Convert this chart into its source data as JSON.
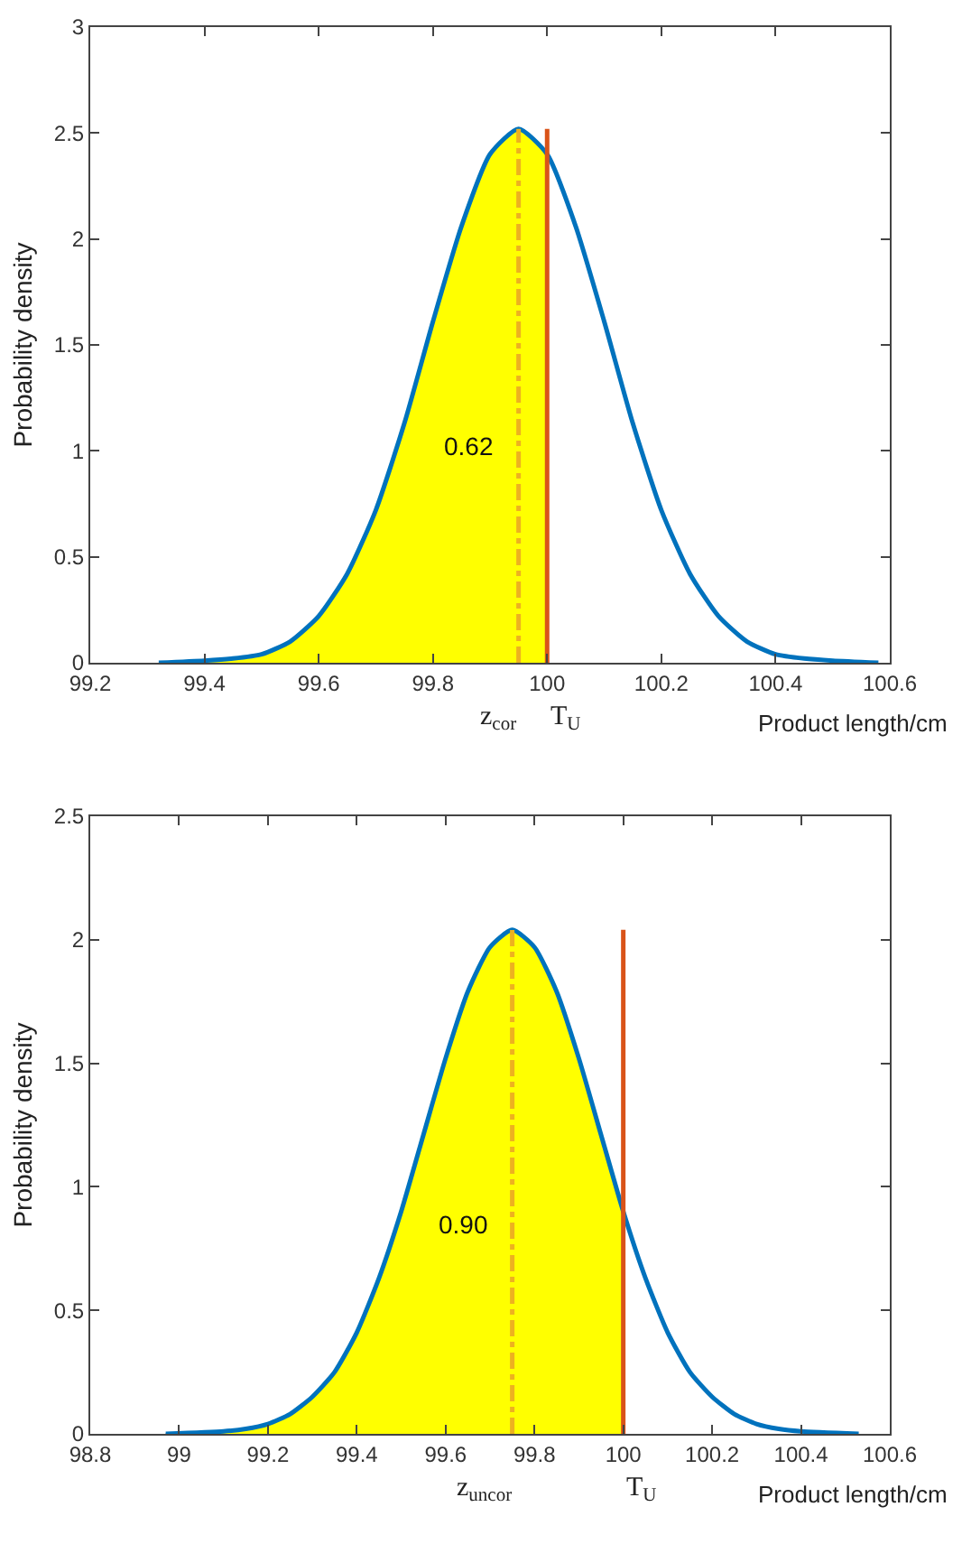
{
  "chart_data": [
    {
      "type": "line",
      "ylabel": "Probability density",
      "xlabel": "Product length/cm",
      "xlim": [
        99.2,
        100.6
      ],
      "xticks": [
        99.2,
        99.4,
        99.6,
        99.8,
        100,
        100.2,
        100.4,
        100.6
      ],
      "ylim": [
        0,
        3
      ],
      "yticks": [
        0,
        0.5,
        1,
        1.5,
        2,
        2.5,
        3
      ],
      "series": [
        {
          "type": "area",
          "color": "#ffff00",
          "x": [
            99.32,
            99.4,
            99.45,
            99.5,
            99.55,
            99.6,
            99.65,
            99.7,
            99.75,
            99.8,
            99.85,
            99.9,
            99.95,
            100
          ],
          "values": [
            0,
            0.01,
            0.02,
            0.04,
            0.1,
            0.22,
            0.42,
            0.72,
            1.13,
            1.61,
            2.06,
            2.4,
            2.52,
            2.4
          ]
        },
        {
          "color": "#0072bd",
          "line_style": "solid",
          "x": [
            99.32,
            99.4,
            99.45,
            99.5,
            99.55,
            99.6,
            99.65,
            99.7,
            99.75,
            99.8,
            99.85,
            99.9,
            99.95,
            100,
            100.05,
            100.1,
            100.15,
            100.2,
            100.25,
            100.3,
            100.35,
            100.4,
            100.45,
            100.5,
            100.58
          ],
          "values": [
            0,
            0.01,
            0.02,
            0.04,
            0.1,
            0.22,
            0.42,
            0.72,
            1.13,
            1.61,
            2.06,
            2.4,
            2.52,
            2.4,
            2.06,
            1.61,
            1.13,
            0.72,
            0.42,
            0.22,
            0.1,
            0.04,
            0.02,
            0.01,
            0
          ]
        },
        {
          "color": "#edb120",
          "line_style": "dashed",
          "x": [
            99.95,
            99.95
          ],
          "values": [
            0,
            2.52
          ]
        },
        {
          "color": "#d95319",
          "line_style": "solid",
          "x": [
            100,
            100
          ],
          "values": [
            0,
            2.52
          ]
        }
      ],
      "annotations": [
        "0.62",
        "z$_{cor}$",
        "T$_{U}$"
      ]
    },
    {
      "type": "line",
      "ylabel": "Probability density",
      "xlabel": "Product length/cm",
      "xlim": [
        98.8,
        100.6
      ],
      "xticks": [
        98.8,
        99,
        99.2,
        99.4,
        99.6,
        99.8,
        100,
        100.2,
        100.4,
        100.6
      ],
      "ylim": [
        0,
        2.5
      ],
      "yticks": [
        0,
        0.5,
        1,
        1.5,
        2,
        2.5
      ],
      "series": [
        {
          "type": "area",
          "color": "#ffff00",
          "x": [
            98.97,
            99.1,
            99.15,
            99.2,
            99.25,
            99.3,
            99.35,
            99.4,
            99.45,
            99.5,
            99.55,
            99.6,
            99.65,
            99.7,
            99.75,
            99.8,
            99.85,
            99.9,
            99.95,
            100
          ],
          "values": [
            0,
            0.01,
            0.02,
            0.04,
            0.08,
            0.15,
            0.25,
            0.41,
            0.63,
            0.9,
            1.21,
            1.52,
            1.79,
            1.97,
            2.04,
            1.97,
            1.79,
            1.52,
            1.21,
            0.9
          ]
        },
        {
          "color": "#0072bd",
          "line_style": "solid",
          "x": [
            98.97,
            99.1,
            99.15,
            99.2,
            99.25,
            99.3,
            99.35,
            99.4,
            99.45,
            99.5,
            99.55,
            99.6,
            99.65,
            99.7,
            99.75,
            99.8,
            99.85,
            99.9,
            99.95,
            100,
            100.05,
            100.1,
            100.15,
            100.2,
            100.25,
            100.3,
            100.35,
            100.4,
            100.53
          ],
          "values": [
            0,
            0.01,
            0.02,
            0.04,
            0.08,
            0.15,
            0.25,
            0.41,
            0.63,
            0.9,
            1.21,
            1.52,
            1.79,
            1.97,
            2.04,
            1.97,
            1.79,
            1.52,
            1.21,
            0.9,
            0.63,
            0.41,
            0.25,
            0.15,
            0.08,
            0.04,
            0.02,
            0.01,
            0
          ]
        },
        {
          "color": "#edb120",
          "line_style": "dashed",
          "x": [
            99.75,
            99.75
          ],
          "values": [
            0,
            2.04
          ]
        },
        {
          "color": "#d95319",
          "line_style": "solid",
          "x": [
            100,
            100
          ],
          "values": [
            0,
            2.04
          ]
        }
      ],
      "annotations": [
        "0.90",
        "z$_{uncor}$",
        "T$_{U}$"
      ]
    }
  ]
}
